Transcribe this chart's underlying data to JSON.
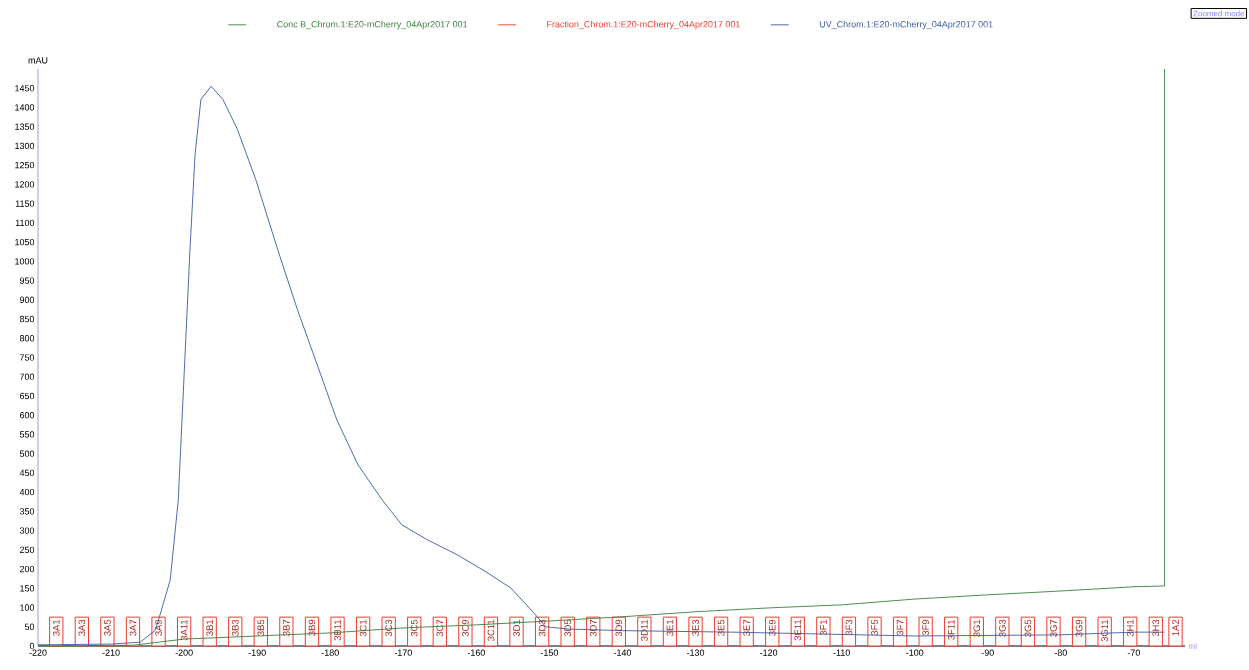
{
  "chart_data": {
    "type": "line",
    "xlabel": "ml",
    "ylabel": "mAU",
    "legend": "top",
    "xlim": [
      -220,
      -63
    ],
    "ylim": [
      0,
      1500
    ],
    "xticks": [
      -220,
      -210,
      -200,
      -190,
      -180,
      -170,
      -160,
      -150,
      -140,
      -130,
      -120,
      -110,
      -100,
      -90,
      -80,
      -70
    ],
    "yticks": [
      0,
      50,
      100,
      150,
      200,
      250,
      300,
      350,
      400,
      450,
      500,
      550,
      600,
      650,
      700,
      750,
      800,
      850,
      900,
      950,
      1000,
      1050,
      1100,
      1150,
      1200,
      1250,
      1300,
      1350,
      1400,
      1450
    ],
    "series": [
      {
        "name": "Conc B_Chrom.1:E20-mCherry_04Apr2017 001",
        "color": "#3a7d3a",
        "x": [
          -220,
          -207,
          -200,
          -190,
          -180,
          -170,
          -160,
          -150,
          -140,
          -130,
          -120,
          -110,
          -100,
          -90,
          -80,
          -70,
          -65.8,
          -65.8
        ],
        "values": [
          0,
          2,
          18,
          26,
          34,
          47,
          55,
          65,
          76,
          89,
          99,
          107,
          122,
          133,
          143,
          154,
          156,
          1500
        ]
      },
      {
        "name": "Fraction_Chrom.1:E20-mCherry_04Apr2017 001",
        "color": "#ee3b2b",
        "type": "bar",
        "x": [
          -217.5,
          -214,
          -210.5,
          -207,
          -203.5,
          -200,
          -196.5,
          -193,
          -189.5,
          -186,
          -182.5,
          -179,
          -175.5,
          -172,
          -168.5,
          -165,
          -161.5,
          -158,
          -154.5,
          -151,
          -147.5,
          -144,
          -140.5,
          -137,
          -133.5,
          -130,
          -126.5,
          -123,
          -119.5,
          -116,
          -112.5,
          -109,
          -105.5,
          -102,
          -98.5,
          -95,
          -91.5,
          -88,
          -84.5,
          -81,
          -77.5,
          -74,
          -70.5,
          -67,
          -64.3
        ],
        "values": [
          75,
          75,
          75,
          75,
          75,
          75,
          75,
          75,
          75,
          75,
          75,
          75,
          75,
          75,
          75,
          75,
          75,
          75,
          75,
          75,
          75,
          75,
          75,
          75,
          75,
          75,
          75,
          75,
          75,
          75,
          75,
          75,
          75,
          75,
          75,
          75,
          75,
          75,
          75,
          75,
          75,
          75,
          75,
          75,
          75
        ]
      },
      {
        "name": "UV_Chrom.1:E20-mCherry_04Apr2017 001",
        "color": "#3a5ba0",
        "x": [
          -220,
          -210,
          -206,
          -204,
          -203.5,
          -201.9,
          -200.8,
          -199.2,
          -198.5,
          -197.7,
          -196.3,
          -194.7,
          -192.7,
          -190.2,
          -187.2,
          -184.5,
          -181.8,
          -179.1,
          -176.2,
          -172.9,
          -170.2,
          -166.7,
          -162.6,
          -158.7,
          -155.3,
          -152.5,
          -150.5,
          -147.4,
          -140,
          -125,
          -100,
          -80,
          -70,
          -65.8
        ],
        "values": [
          3,
          5,
          10,
          40,
          68,
          172,
          380,
          1030,
          1278,
          1421,
          1455,
          1421,
          1343,
          1213,
          1031,
          875,
          732,
          588,
          471,
          380,
          315,
          276,
          237,
          193,
          151,
          94,
          50,
          44,
          40,
          36,
          26,
          29,
          36,
          36
        ]
      }
    ],
    "annotations": [
      "Zoomed mode",
      {
        "text": "3A1",
        "x": -217.5,
        "y": 75
      },
      {
        "text": "3A3",
        "x": -214,
        "y": 75
      },
      {
        "text": "3A5",
        "x": -210.5,
        "y": 75
      },
      {
        "text": "3A7",
        "x": -207,
        "y": 75
      },
      {
        "text": "3A9",
        "x": -203.5,
        "y": 75
      },
      {
        "text": "3A11",
        "x": -200,
        "y": 75
      },
      {
        "text": "3B1",
        "x": -196.5,
        "y": 75
      },
      {
        "text": "3B3",
        "x": -193,
        "y": 75
      },
      {
        "text": "3B5",
        "x": -189.5,
        "y": 75
      },
      {
        "text": "3B7",
        "x": -186,
        "y": 75
      },
      {
        "text": "3B9",
        "x": -182.5,
        "y": 75
      },
      {
        "text": "3B11",
        "x": -179,
        "y": 75
      },
      {
        "text": "3C1",
        "x": -175.5,
        "y": 75
      },
      {
        "text": "3C3",
        "x": -172,
        "y": 75
      },
      {
        "text": "3C5",
        "x": -168.5,
        "y": 75
      },
      {
        "text": "3C7",
        "x": -165,
        "y": 75
      },
      {
        "text": "3C9",
        "x": -161.5,
        "y": 75
      },
      {
        "text": "3C11",
        "x": -158,
        "y": 75
      },
      {
        "text": "3D1",
        "x": -154.5,
        "y": 75
      },
      {
        "text": "3D3",
        "x": -151,
        "y": 75
      },
      {
        "text": "3D5",
        "x": -147.5,
        "y": 75
      },
      {
        "text": "3D7",
        "x": -144,
        "y": 75
      },
      {
        "text": "3D9",
        "x": -140.5,
        "y": 75
      },
      {
        "text": "3D11",
        "x": -137,
        "y": 75
      },
      {
        "text": "3E1",
        "x": -133.5,
        "y": 75
      },
      {
        "text": "3E3",
        "x": -130,
        "y": 75
      },
      {
        "text": "3E5",
        "x": -126.5,
        "y": 75
      },
      {
        "text": "3E7",
        "x": -123,
        "y": 75
      },
      {
        "text": "3E9",
        "x": -119.5,
        "y": 75
      },
      {
        "text": "3E11",
        "x": -116,
        "y": 75
      },
      {
        "text": "3F1",
        "x": -112.5,
        "y": 75
      },
      {
        "text": "3F3",
        "x": -109,
        "y": 75
      },
      {
        "text": "3F5",
        "x": -105.5,
        "y": 75
      },
      {
        "text": "3F7",
        "x": -102,
        "y": 75
      },
      {
        "text": "3F9",
        "x": -98.5,
        "y": 75
      },
      {
        "text": "3F11",
        "x": -95,
        "y": 75
      },
      {
        "text": "3G1",
        "x": -91.5,
        "y": 75
      },
      {
        "text": "3G3",
        "x": -88,
        "y": 75
      },
      {
        "text": "3G5",
        "x": -84.5,
        "y": 75
      },
      {
        "text": "3G7",
        "x": -81,
        "y": 75
      },
      {
        "text": "3G9",
        "x": -77.5,
        "y": 75
      },
      {
        "text": "3G11",
        "x": -74,
        "y": 75
      },
      {
        "text": "3H1",
        "x": -70.5,
        "y": 75
      },
      {
        "text": "3H3",
        "x": -67,
        "y": 75
      },
      {
        "text": "1A2",
        "x": -64.3,
        "y": 75
      }
    ]
  }
}
